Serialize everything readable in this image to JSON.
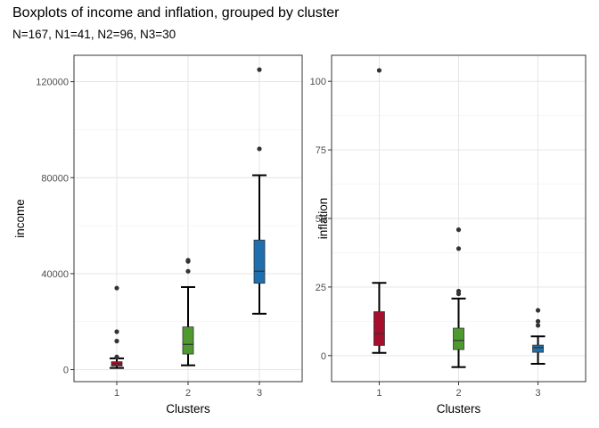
{
  "title": "Boxplots of income and inflation, grouped by cluster",
  "subtitle": "N=167, N1=41, N2=96, N3=30",
  "chart_data": [
    {
      "type": "box",
      "xlabel": "Clusters",
      "ylabel": "income",
      "categories": [
        "1",
        "2",
        "3"
      ],
      "ylim": [
        -5000,
        131000
      ],
      "yticks": [
        0,
        40000,
        80000,
        120000
      ],
      "ytick_labels": [
        "0",
        "40000",
        "80000",
        "120000"
      ],
      "colors": [
        "#a50f2b",
        "#4e9a2f",
        "#1f6fae"
      ],
      "boxes": [
        {
          "min": 700,
          "q1": 1500,
          "median": 2400,
          "q3": 3300,
          "max": 4700,
          "outliers": [
            5300,
            11900,
            15800,
            34000
          ]
        },
        {
          "min": 1800,
          "q1": 6500,
          "median": 10500,
          "q3": 17800,
          "max": 34400,
          "outliers": [
            41000,
            45100,
            45600
          ]
        },
        {
          "min": 23300,
          "q1": 36000,
          "median": 41000,
          "q3": 54000,
          "max": 81000,
          "outliers": [
            92000,
            125000
          ]
        }
      ],
      "grid": true
    },
    {
      "type": "box",
      "xlabel": "Clusters",
      "ylabel": "inflation",
      "categories": [
        "1",
        "2",
        "3"
      ],
      "ylim": [
        -9.5,
        109.5
      ],
      "yticks": [
        0,
        25,
        50,
        75,
        100
      ],
      "ytick_labels": [
        "0",
        "25",
        "50",
        "75",
        "100"
      ],
      "colors": [
        "#a50f2b",
        "#4e9a2f",
        "#1f6fae"
      ],
      "boxes": [
        {
          "min": 1.0,
          "q1": 3.7,
          "median": 8.0,
          "q3": 16.0,
          "max": 26.5,
          "outliers": [
            104.0
          ]
        },
        {
          "min": -4.2,
          "q1": 2.2,
          "median": 5.5,
          "q3": 10.0,
          "max": 20.8,
          "outliers": [
            22.5,
            23.5,
            39.0,
            45.9
          ]
        },
        {
          "min": -3.0,
          "q1": 1.2,
          "median": 2.9,
          "q3": 3.8,
          "max": 7.0,
          "outliers": [
            11.0,
            12.5,
            16.5
          ]
        }
      ],
      "grid": true
    }
  ]
}
